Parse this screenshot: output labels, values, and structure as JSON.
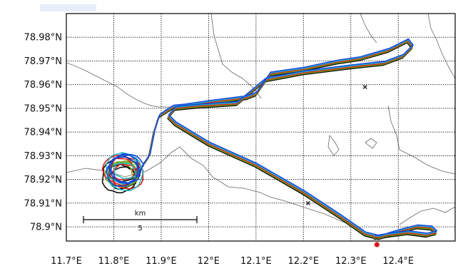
{
  "map": {
    "lon_min": 11.7,
    "lon_max": 12.52,
    "lat_min": 78.894,
    "lat_max": 78.99,
    "lon_ticks": [
      "11.7°E",
      "11.8°E",
      "11.9°E",
      "12°E",
      "12.1°E",
      "12.2°E",
      "12.3°E",
      "12.4°E"
    ],
    "lat_ticks": [
      "78.98°N",
      "78.97°N",
      "78.96°N",
      "78.95°N",
      "78.94°N",
      "78.93°N",
      "78.92°N",
      "78.91°N",
      "78.9°N"
    ],
    "grid": true,
    "scale_bar": {
      "unit": "km",
      "value": "5"
    },
    "colors": {
      "tracks": [
        "#000000",
        "#6aa40c",
        "#e01010",
        "#1abcbc",
        "#1040e0"
      ],
      "coastline": "#666666",
      "marker": "#d81818",
      "station": "#222222"
    },
    "tracks": [
      {
        "color_index": 0
      },
      {
        "color_index": 1
      },
      {
        "color_index": 2
      },
      {
        "color_index": 3
      },
      {
        "color_index": 4
      }
    ],
    "station_markers": [
      {
        "icon": "x-marker-icon",
        "lon": 12.33,
        "lat": 78.959
      },
      {
        "icon": "x-marker-icon",
        "lon": 12.21,
        "lat": 78.91
      }
    ],
    "end_marker": {
      "icon": "red-dot-icon",
      "lon": 12.355,
      "lat": 78.8925
    }
  }
}
